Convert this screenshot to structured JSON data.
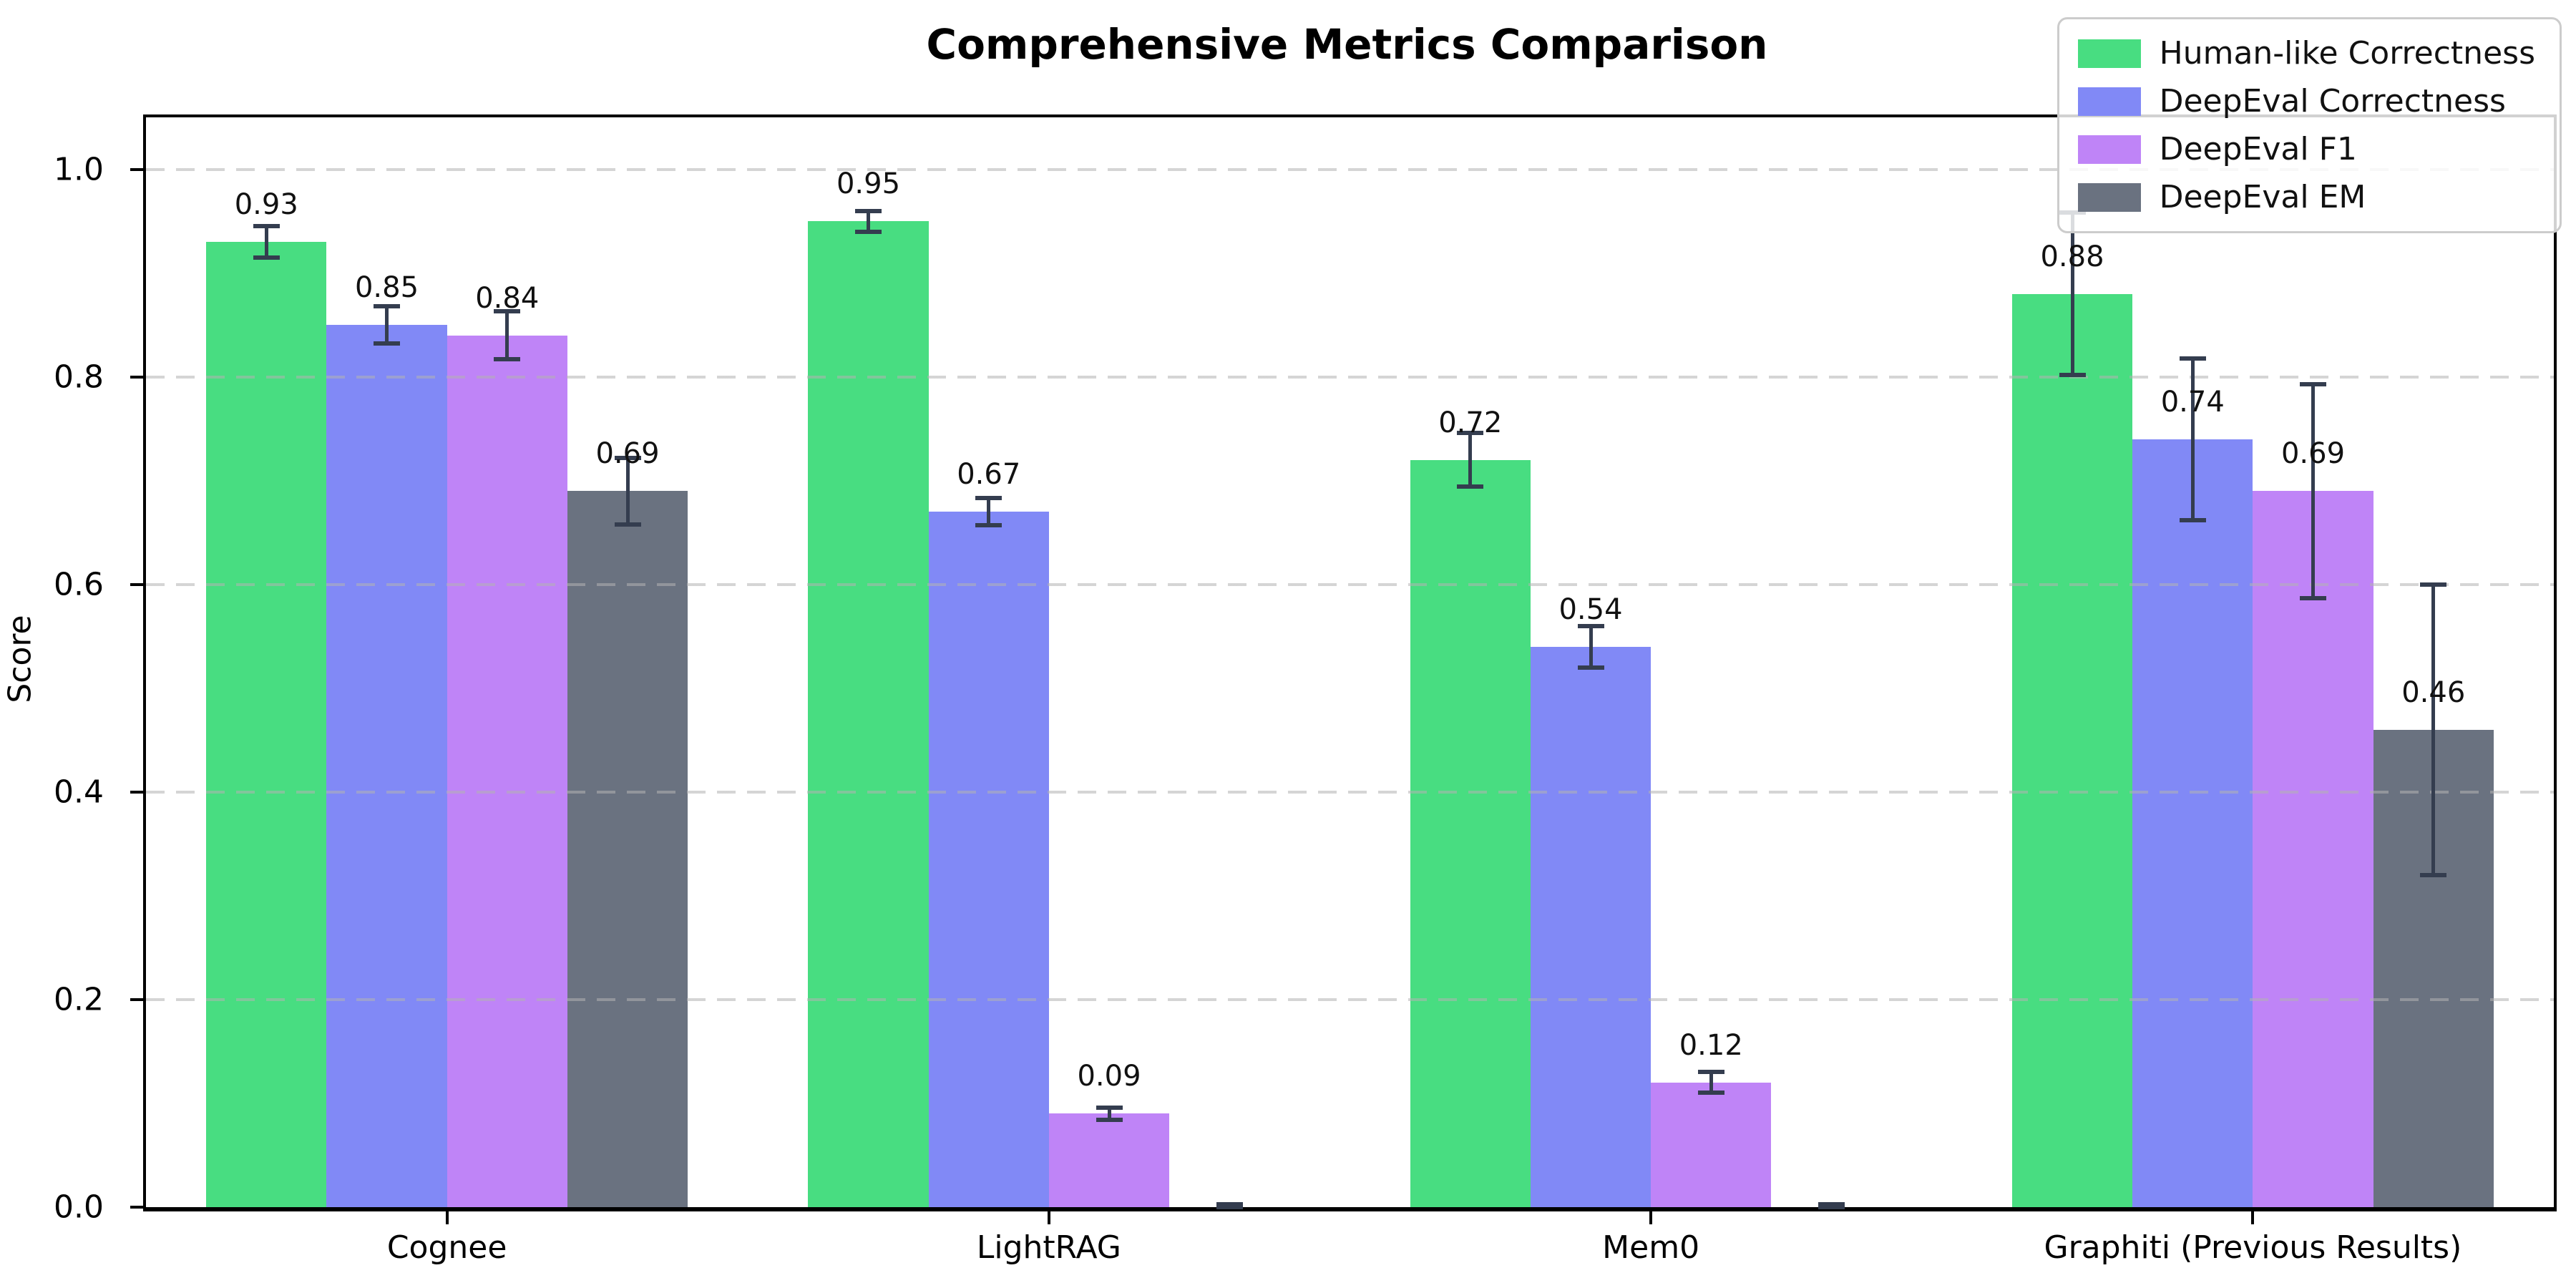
{
  "title": "Comprehensive Metrics Comparison",
  "chart_data": {
    "type": "bar",
    "title": "Comprehensive Metrics Comparison",
    "xlabel": "",
    "ylabel": "Score",
    "ylim": [
      0,
      1.05
    ],
    "y_ticks": [
      "0.0",
      "0.2",
      "0.4",
      "0.6",
      "0.8",
      "1.0"
    ],
    "y_tick_values": [
      0.0,
      0.2,
      0.4,
      0.6,
      0.8,
      1.0
    ],
    "grid": "horizontal-dashed",
    "legend_position": "upper-right",
    "categories": [
      "Cognee",
      "LightRAG",
      "Mem0",
      "Graphiti (Previous Results)"
    ],
    "series": [
      {
        "name": "Human-like Correctness",
        "color": "#48dd81",
        "values": [
          0.93,
          0.95,
          0.72,
          0.88
        ],
        "errors": [
          0.015,
          0.01,
          0.026,
          0.078
        ],
        "labels": [
          "0.93",
          "0.95",
          "0.72",
          "0.88"
        ]
      },
      {
        "name": "DeepEval Correctness",
        "color": "#8189f6",
        "values": [
          0.85,
          0.67,
          0.54,
          0.74
        ],
        "errors": [
          0.018,
          0.013,
          0.02,
          0.078
        ],
        "labels": [
          "0.85",
          "0.67",
          "0.54",
          "0.74"
        ]
      },
      {
        "name": "DeepEval F1",
        "color": "#bf84f7",
        "values": [
          0.84,
          0.09,
          0.12,
          0.69
        ],
        "errors": [
          0.023,
          0.006,
          0.01,
          0.103
        ],
        "labels": [
          "0.84",
          "0.09",
          "0.12",
          "0.69"
        ]
      },
      {
        "name": "DeepEval EM",
        "color": "#6a7280",
        "values": [
          0.69,
          0.0,
          0.0,
          0.46
        ],
        "errors": [
          0.032,
          0.003,
          0.003,
          0.14
        ],
        "labels": [
          "0.69",
          "",
          "",
          "0.46"
        ]
      }
    ],
    "error_bar_color": "#343d4f"
  }
}
